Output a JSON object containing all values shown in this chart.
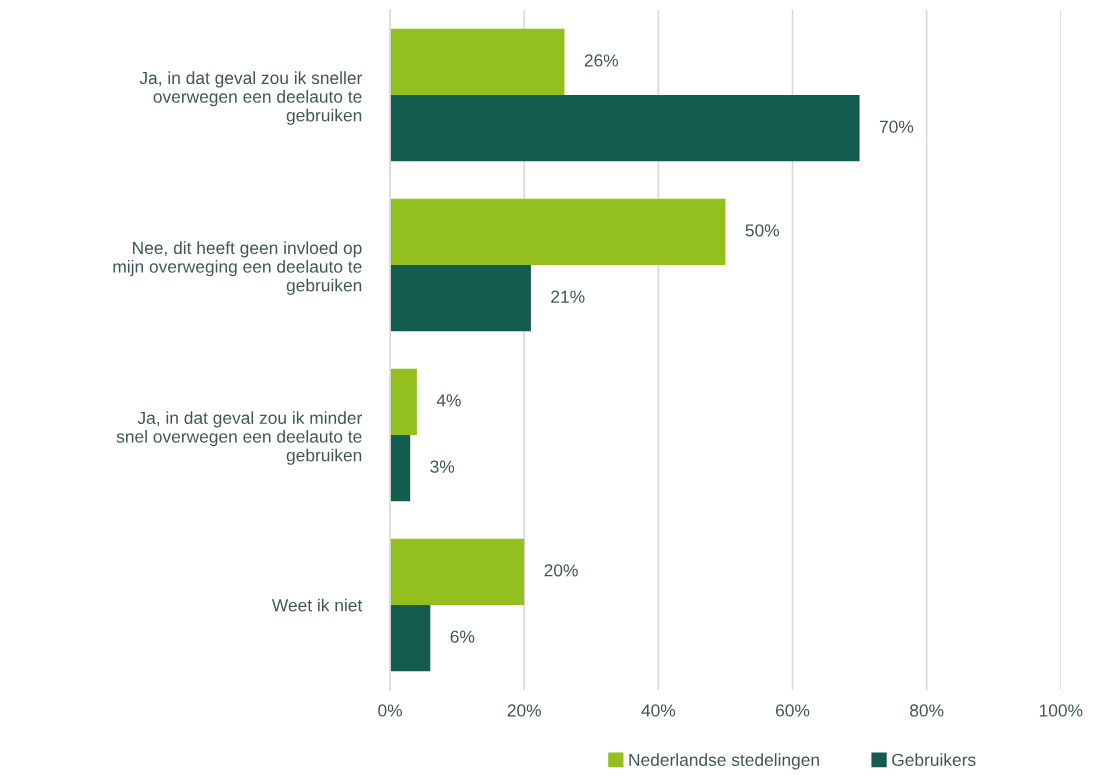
{
  "chart_data": {
    "type": "bar",
    "orientation": "horizontal",
    "categories": [
      "Ja, in dat geval zou ik sneller overwegen een deelauto te gebruiken",
      "Nee, dit heeft geen invloed op mijn overweging een deelauto te gebruiken",
      "Ja, in dat geval zou ik minder snel overwegen een deelauto te gebruiken",
      "Weet ik niet"
    ],
    "series": [
      {
        "name": "Nederlandse stedelingen",
        "color": "#93c01f",
        "values": [
          26,
          50,
          4,
          20
        ],
        "value_labels": [
          "26%",
          "50%",
          "4%",
          "20%"
        ]
      },
      {
        "name": "Gebruikers",
        "color": "#135c4e",
        "values": [
          70,
          21,
          3,
          6
        ],
        "value_labels": [
          "70%",
          "21%",
          "3%",
          "6%"
        ]
      }
    ],
    "xlim": [
      0,
      100
    ],
    "xticks": [
      {
        "value": 0,
        "label": "0%"
      },
      {
        "value": 20,
        "label": "20%"
      },
      {
        "value": 40,
        "label": "40%"
      },
      {
        "value": 60,
        "label": "60%"
      },
      {
        "value": 80,
        "label": "80%"
      },
      {
        "value": 100,
        "label": "100%"
      }
    ],
    "grid": "x",
    "legend": "bottom"
  }
}
